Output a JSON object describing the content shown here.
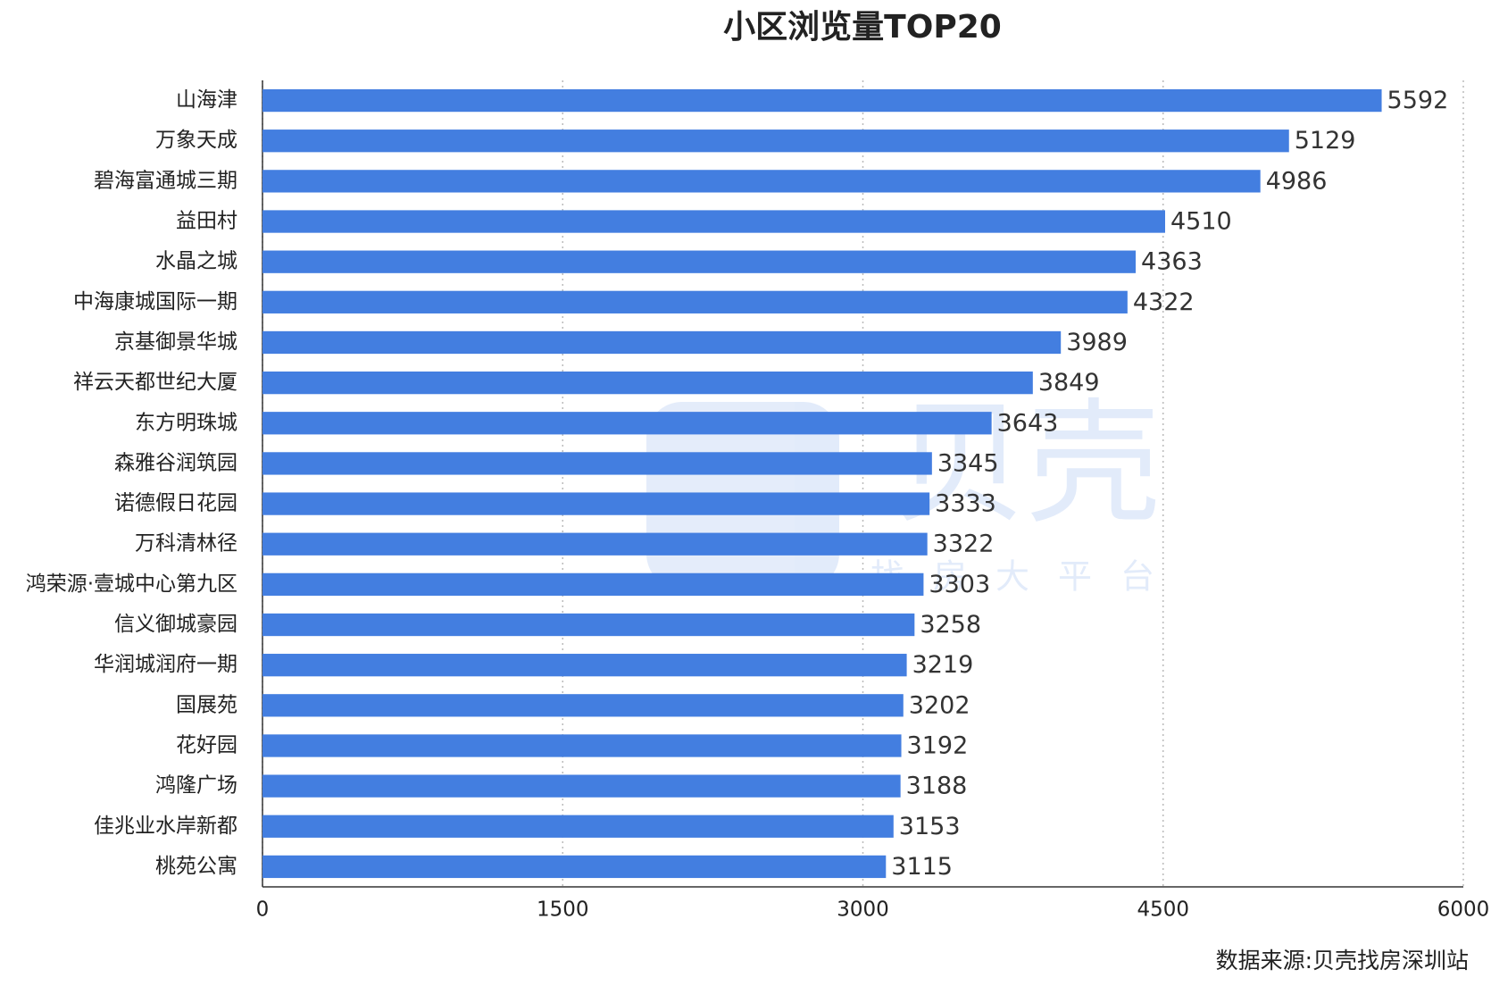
{
  "chart_data": {
    "type": "bar",
    "orientation": "horizontal",
    "title": "小区浏览量TOP20",
    "categories": [
      "山海津",
      "万象天成",
      "碧海富通城三期",
      "益田村",
      "水晶之城",
      "中海康城国际一期",
      "京基御景华城",
      "祥云天都世纪大厦",
      "东方明珠城",
      "森雅谷润筑园",
      "诺德假日花园",
      "万科清林径",
      "鸿荣源·壹城中心第九区",
      "信义御城豪园",
      "华润城润府一期",
      "国展苑",
      "花好园",
      "鸿隆广场",
      "佳兆业水岸新都",
      "桃苑公寓"
    ],
    "values": [
      5592,
      5129,
      4986,
      4510,
      4363,
      4322,
      3989,
      3849,
      3643,
      3345,
      3333,
      3322,
      3303,
      3258,
      3219,
      3202,
      3192,
      3188,
      3153,
      3115
    ],
    "color": "#437ee0",
    "xlim": [
      0,
      6000
    ],
    "xticks": [
      0,
      1500,
      3000,
      4500,
      6000
    ],
    "grid": true,
    "source": "数据来源:贝壳找房深圳站",
    "watermark": {
      "brand": "贝壳",
      "tagline": "找房大平台"
    }
  }
}
